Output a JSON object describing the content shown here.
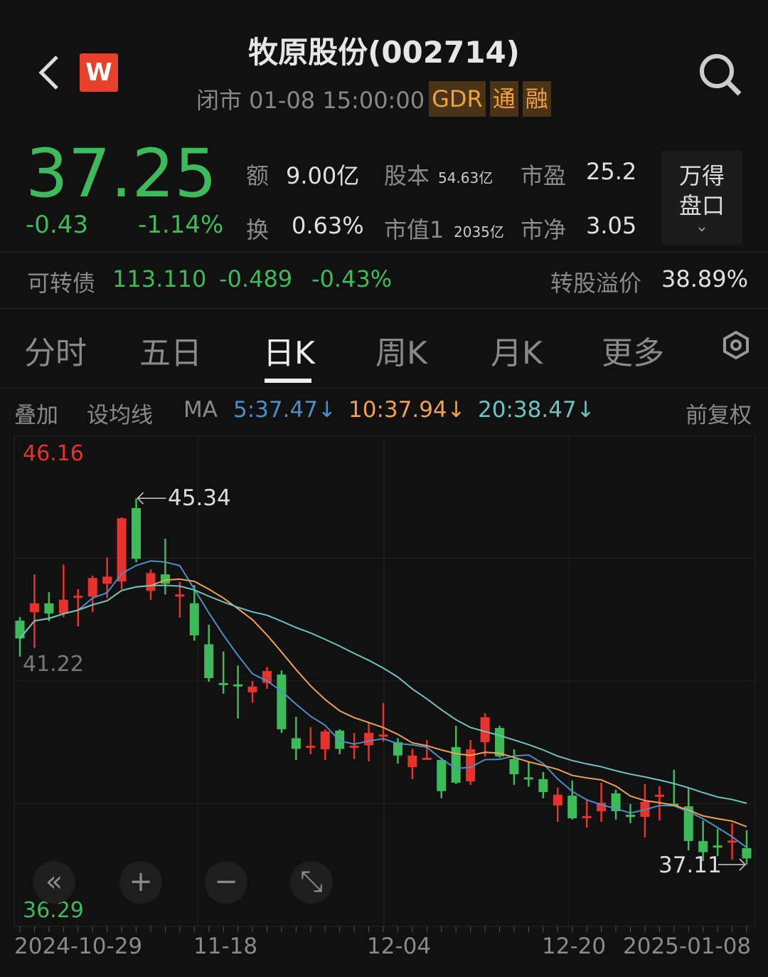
{
  "header": {
    "title": "牧原股份(002714)",
    "status_text": "闭市 01-08 15:00:00",
    "tags": [
      "GDR",
      "通",
      "融"
    ],
    "logo_text": "W"
  },
  "quote": {
    "price": "37.25",
    "change": "-0.43",
    "change_pct": "-1.14%",
    "stats": [
      {
        "label": "额",
        "value": "9.00亿"
      },
      {
        "label": "股本",
        "value": "54.63亿"
      },
      {
        "label": "市盈",
        "value": "25.2"
      },
      {
        "label": "换",
        "value": "0.63%"
      },
      {
        "label": "市值1",
        "value": "2035亿"
      },
      {
        "label": "市净",
        "value": "3.05"
      }
    ],
    "wind_button": [
      "万得",
      "盘口"
    ]
  },
  "bond": {
    "label": "可转债",
    "price": "113.110",
    "change": "-0.489",
    "change_pct": "-0.43%",
    "premium_label": "转股溢价",
    "premium": "38.89%"
  },
  "tabs": [
    {
      "label": "分时"
    },
    {
      "label": "五日"
    },
    {
      "label": "日K",
      "active": true
    },
    {
      "label": "周K"
    },
    {
      "label": "月K"
    },
    {
      "label": "更多"
    }
  ],
  "ma_bar": {
    "overlay": "叠加",
    "set_ma": "设均线",
    "ma": "MA",
    "ma5": "5:37.47↓",
    "ma10": "10:37.94↓",
    "ma20": "20:38.47↓",
    "adjust": "前复权"
  },
  "colors": {
    "up": "#e8322e",
    "down": "#3dbb5a",
    "ma5": "#4a8fc8",
    "ma10": "#f0a050",
    "ma20": "#6cc4c0",
    "accent_tag": "#f0a040"
  },
  "chart_data": {
    "type": "candlestick",
    "axis_labels": {
      "top": "46.16",
      "mid": "41.22",
      "bottom": "36.29"
    },
    "ylim": [
      35.72,
      46.75
    ],
    "annotations": {
      "high": "45.34",
      "low": "37.11"
    },
    "x_labels": [
      "2024-10-29",
      "11-18",
      "12-04",
      "12-20",
      "2025-01-08"
    ],
    "moving_averages": [
      5,
      10,
      20
    ],
    "ohlc": [
      [
        42.59,
        42.67,
        41.78,
        42.19
      ],
      [
        42.78,
        43.63,
        41.98,
        42.98
      ],
      [
        42.98,
        43.23,
        42.58,
        42.75
      ],
      [
        42.75,
        43.85,
        42.67,
        43.06
      ],
      [
        43.13,
        43.3,
        42.46,
        43.15
      ],
      [
        43.13,
        43.6,
        42.78,
        43.55
      ],
      [
        43.42,
        44.01,
        43.1,
        43.58
      ],
      [
        43.47,
        44.91,
        43.3,
        44.89
      ],
      [
        45.12,
        45.34,
        43.9,
        43.98
      ],
      [
        43.26,
        43.74,
        43.06,
        43.66
      ],
      [
        43.63,
        44.43,
        43.18,
        43.42
      ],
      [
        43.16,
        43.46,
        42.66,
        43.18
      ],
      [
        42.98,
        43.39,
        42.14,
        42.26
      ],
      [
        42.06,
        42.5,
        41.22,
        41.3
      ],
      [
        41.19,
        41.9,
        40.95,
        41.17
      ],
      [
        41.16,
        41.58,
        40.39,
        41.14
      ],
      [
        40.98,
        41.23,
        40.75,
        41.11
      ],
      [
        41.19,
        41.55,
        41.06,
        41.46
      ],
      [
        41.38,
        41.47,
        40.07,
        40.15
      ],
      [
        39.95,
        40.43,
        39.46,
        39.71
      ],
      [
        39.77,
        40.2,
        39.59,
        39.78
      ],
      [
        39.7,
        40.15,
        39.46,
        40.1
      ],
      [
        40.12,
        40.15,
        39.59,
        39.71
      ],
      [
        39.77,
        40.07,
        39.48,
        39.78
      ],
      [
        39.79,
        40.31,
        39.43,
        40.07
      ],
      [
        40.02,
        40.74,
        39.87,
        40.03
      ],
      [
        39.86,
        39.95,
        39.38,
        39.56
      ],
      [
        39.3,
        39.71,
        39.03,
        39.56
      ],
      [
        39.5,
        39.91,
        39.46,
        39.51
      ],
      [
        39.46,
        39.51,
        38.6,
        38.76
      ],
      [
        39.75,
        40.23,
        38.92,
        38.95
      ],
      [
        38.98,
        39.91,
        38.9,
        39.7
      ],
      [
        39.86,
        40.51,
        39.54,
        40.42
      ],
      [
        40.18,
        40.23,
        39.51,
        39.54
      ],
      [
        39.48,
        39.7,
        38.9,
        39.14
      ],
      [
        39.07,
        39.43,
        38.86,
        39.06
      ],
      [
        39.03,
        39.19,
        38.6,
        38.74
      ],
      [
        38.44,
        38.84,
        38.07,
        38.68
      ],
      [
        38.66,
        39.0,
        38.12,
        38.15
      ],
      [
        38.19,
        38.58,
        37.94,
        38.2
      ],
      [
        38.31,
        38.95,
        38.07,
        38.5
      ],
      [
        38.71,
        38.79,
        38.12,
        38.31
      ],
      [
        38.23,
        38.47,
        38.04,
        38.18
      ],
      [
        38.18,
        38.92,
        37.72,
        38.52
      ],
      [
        38.67,
        38.87,
        38.1,
        38.68
      ],
      [
        38.48,
        39.24,
        38.44,
        38.47
      ],
      [
        38.42,
        38.82,
        37.43,
        37.64
      ],
      [
        37.64,
        38.1,
        37.19,
        37.39
      ],
      [
        37.54,
        37.91,
        37.3,
        37.53
      ],
      [
        37.61,
        38.04,
        37.22,
        37.65
      ],
      [
        37.48,
        37.88,
        37.11,
        37.25
      ]
    ]
  },
  "chart_controls": [
    {
      "icon": "double-chevron-left-icon",
      "glyph": "«"
    },
    {
      "icon": "plus-icon",
      "glyph": "+"
    },
    {
      "icon": "minus-icon",
      "glyph": "−"
    },
    {
      "icon": "expand-icon",
      "glyph": "⤡"
    }
  ]
}
